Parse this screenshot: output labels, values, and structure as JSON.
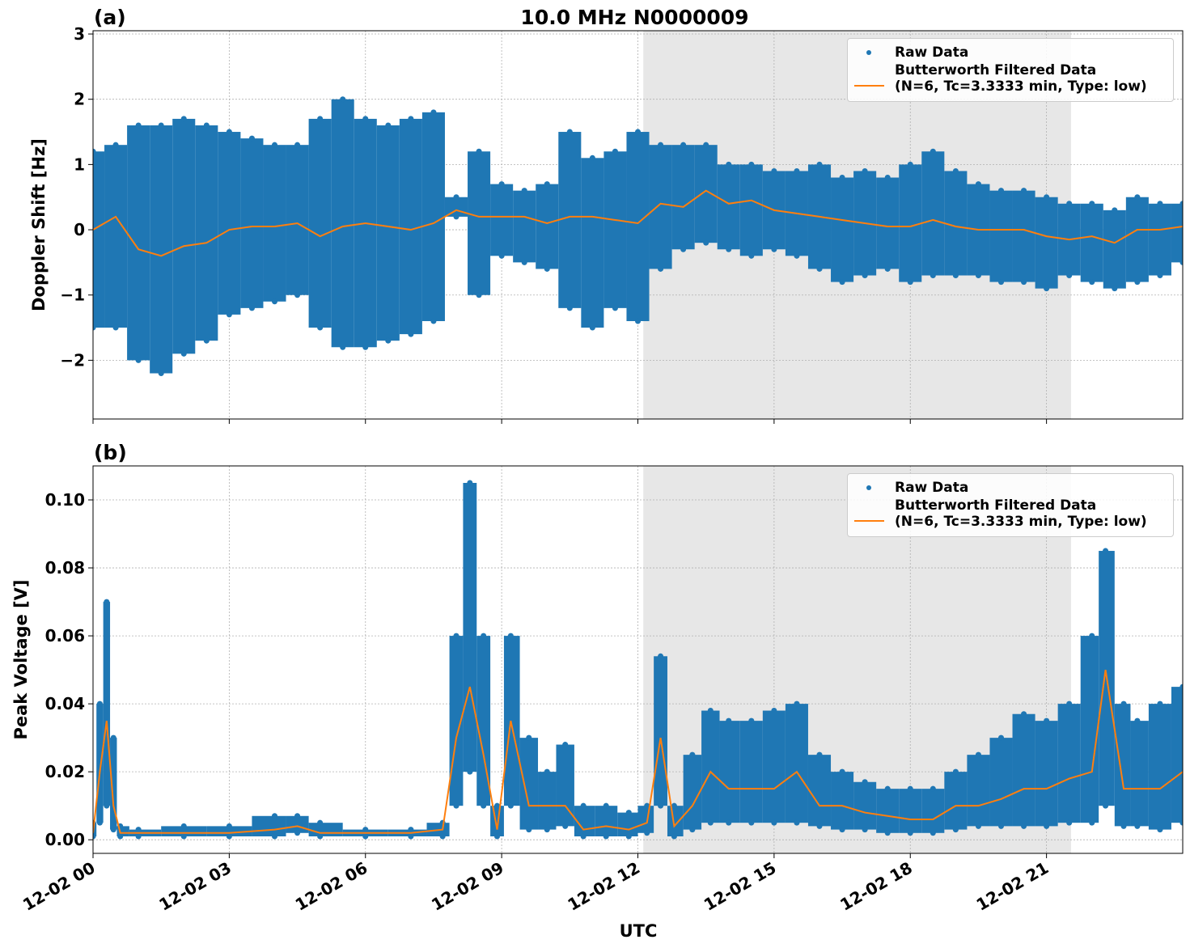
{
  "chart_data": [
    {
      "type": "scatter-band",
      "panel_label": "(a)",
      "title": "10.0 MHz N0000009",
      "y_label": "Doppler Shift [Hz]",
      "xlim": [
        0,
        24
      ],
      "xticks": [
        0,
        3,
        6,
        9,
        12,
        15,
        18,
        21
      ],
      "ylim": [
        -2.9,
        3.05
      ],
      "yticks": [
        {
          "value": -2,
          "label": "−2"
        },
        {
          "value": -1,
          "label": "−1"
        },
        0,
        1,
        2,
        3
      ],
      "grid": true,
      "legend": "upper right",
      "shaded_span": [
        12.12,
        21.54
      ],
      "shade_color": "#e7e7e7",
      "x": [
        0,
        0.5,
        1,
        1.5,
        2,
        2.5,
        3,
        3.5,
        4,
        4.5,
        5,
        5.5,
        6,
        6.5,
        7,
        7.5,
        8,
        8.5,
        9,
        9.5,
        10,
        10.5,
        11,
        11.5,
        12,
        12.5,
        13,
        13.5,
        14,
        14.5,
        15,
        15.5,
        16,
        16.5,
        17,
        17.5,
        18,
        18.5,
        19,
        19.5,
        20,
        20.5,
        21,
        21.5,
        22,
        22.5,
        23,
        23.5,
        24
      ],
      "series": [
        {
          "name": "Raw Data",
          "color": "#1f77b4",
          "high": [
            1.2,
            1.3,
            1.6,
            1.6,
            1.7,
            1.6,
            1.5,
            1.4,
            1.3,
            1.3,
            1.7,
            2,
            1.7,
            1.6,
            1.7,
            1.8,
            0.5,
            1.2,
            0.7,
            0.6,
            0.7,
            1.5,
            1.1,
            1.2,
            1.5,
            1.3,
            1.3,
            1.3,
            1,
            1,
            0.9,
            0.9,
            1,
            0.8,
            0.9,
            0.8,
            1,
            1.2,
            0.9,
            0.7,
            0.6,
            0.6,
            0.5,
            0.4,
            0.4,
            0.3,
            0.5,
            0.4,
            0.4
          ],
          "low": [
            -1.5,
            -1.5,
            -2,
            -2.2,
            -1.9,
            -1.7,
            -1.3,
            -1.2,
            -1.1,
            -1,
            -1.5,
            -1.8,
            -1.8,
            -1.7,
            -1.6,
            -1.4,
            0.2,
            -1,
            -0.4,
            -0.5,
            -0.6,
            -1.2,
            -1.5,
            -1.2,
            -1.4,
            -0.6,
            -0.3,
            -0.2,
            -0.3,
            -0.4,
            -0.3,
            -0.4,
            -0.6,
            -0.8,
            -0.7,
            -0.6,
            -0.8,
            -0.7,
            -0.7,
            -0.7,
            -0.8,
            -0.8,
            -0.9,
            -0.7,
            -0.8,
            -0.9,
            -0.8,
            -0.7,
            -0.5
          ]
        },
        {
          "name": "Butterworth Filtered Data\n(N=6, Tc=3.3333 min, Type: low)",
          "color": "#ff7f0e",
          "values": [
            0,
            0.2,
            -0.3,
            -0.4,
            -0.25,
            -0.2,
            0,
            0.05,
            0.05,
            0.1,
            -0.1,
            0.05,
            0.1,
            0.05,
            0,
            0.1,
            0.3,
            0.2,
            0.2,
            0.2,
            0.1,
            0.2,
            0.2,
            0.15,
            0.1,
            0.4,
            0.35,
            0.6,
            0.4,
            0.45,
            0.3,
            0.25,
            0.2,
            0.15,
            0.1,
            0.05,
            0.05,
            0.15,
            0.05,
            0,
            0,
            0,
            -0.1,
            -0.15,
            -0.1,
            -0.2,
            0,
            0,
            0.05
          ]
        }
      ]
    },
    {
      "type": "scatter-band",
      "panel_label": "(b)",
      "y_label": "Peak Voltage [V]",
      "x_label": "UTC",
      "xlim": [
        0,
        24
      ],
      "xticks": [
        {
          "value": 0,
          "label": "12-02 00"
        },
        {
          "value": 3,
          "label": "12-02 03"
        },
        {
          "value": 6,
          "label": "12-02 06"
        },
        {
          "value": 9,
          "label": "12-02 09"
        },
        {
          "value": 12,
          "label": "12-02 12"
        },
        {
          "value": 15,
          "label": "12-02 15"
        },
        {
          "value": 18,
          "label": "12-02 18"
        },
        {
          "value": 21,
          "label": "12-02 21"
        }
      ],
      "ylim": [
        -0.004,
        0.11
      ],
      "yticks": [
        {
          "value": 0,
          "label": "0.00"
        },
        {
          "value": 0.02,
          "label": "0.02"
        },
        {
          "value": 0.04,
          "label": "0.04"
        },
        {
          "value": 0.06,
          "label": "0.06"
        },
        {
          "value": 0.08,
          "label": "0.08"
        },
        {
          "value": 0.1,
          "label": "0.10"
        }
      ],
      "grid": true,
      "legend": "upper right",
      "shaded_span": [
        12.12,
        21.54
      ],
      "shade_color": "#e7e7e7",
      "x": [
        0,
        0.15,
        0.3,
        0.45,
        0.6,
        1,
        2,
        3,
        4,
        4.5,
        5,
        6,
        7,
        7.7,
        8,
        8.3,
        8.6,
        8.9,
        9.2,
        9.6,
        10,
        10.4,
        10.8,
        11.3,
        11.8,
        12.2,
        12.5,
        12.8,
        13.2,
        13.6,
        14,
        14.5,
        15,
        15.5,
        16,
        16.5,
        17,
        17.5,
        18,
        18.5,
        19,
        19.5,
        20,
        20.5,
        21,
        21.5,
        22,
        22.3,
        22.7,
        23,
        23.5,
        24
      ],
      "series": [
        {
          "name": "Raw Data",
          "color": "#1f77b4",
          "high": [
            0.005,
            0.04,
            0.07,
            0.03,
            0.004,
            0.003,
            0.004,
            0.004,
            0.007,
            0.007,
            0.005,
            0.003,
            0.003,
            0.005,
            0.06,
            0.105,
            0.06,
            0.01,
            0.06,
            0.03,
            0.02,
            0.028,
            0.01,
            0.01,
            0.008,
            0.01,
            0.054,
            0.01,
            0.025,
            0.038,
            0.035,
            0.035,
            0.038,
            0.04,
            0.025,
            0.02,
            0.017,
            0.015,
            0.015,
            0.015,
            0.02,
            0.025,
            0.03,
            0.037,
            0.035,
            0.04,
            0.06,
            0.085,
            0.04,
            0.035,
            0.04,
            0.045
          ],
          "low": [
            0.001,
            0.005,
            0.01,
            0.003,
            0.001,
            0.001,
            0.001,
            0.001,
            0.001,
            0.002,
            0.001,
            0.001,
            0.001,
            0.001,
            0.01,
            0.02,
            0.01,
            0.001,
            0.01,
            0.003,
            0.003,
            0.004,
            0.001,
            0.001,
            0.001,
            0.002,
            0.01,
            0.001,
            0.003,
            0.005,
            0.005,
            0.005,
            0.005,
            0.005,
            0.004,
            0.003,
            0.003,
            0.002,
            0.002,
            0.002,
            0.003,
            0.004,
            0.004,
            0.004,
            0.004,
            0.005,
            0.005,
            0.01,
            0.004,
            0.004,
            0.003,
            0.005
          ]
        },
        {
          "name": "Butterworth Filtered Data\n(N=6, Tc=3.3333 min, Type: low)",
          "color": "#ff7f0e",
          "values": [
            0.002,
            0.02,
            0.035,
            0.01,
            0.002,
            0.002,
            0.002,
            0.002,
            0.003,
            0.004,
            0.002,
            0.002,
            0.002,
            0.003,
            0.03,
            0.045,
            0.025,
            0.003,
            0.035,
            0.01,
            0.01,
            0.01,
            0.003,
            0.004,
            0.003,
            0.005,
            0.03,
            0.004,
            0.01,
            0.02,
            0.015,
            0.015,
            0.015,
            0.02,
            0.01,
            0.01,
            0.008,
            0.007,
            0.006,
            0.006,
            0.01,
            0.01,
            0.012,
            0.015,
            0.015,
            0.018,
            0.02,
            0.05,
            0.015,
            0.015,
            0.015,
            0.02
          ]
        }
      ]
    }
  ]
}
